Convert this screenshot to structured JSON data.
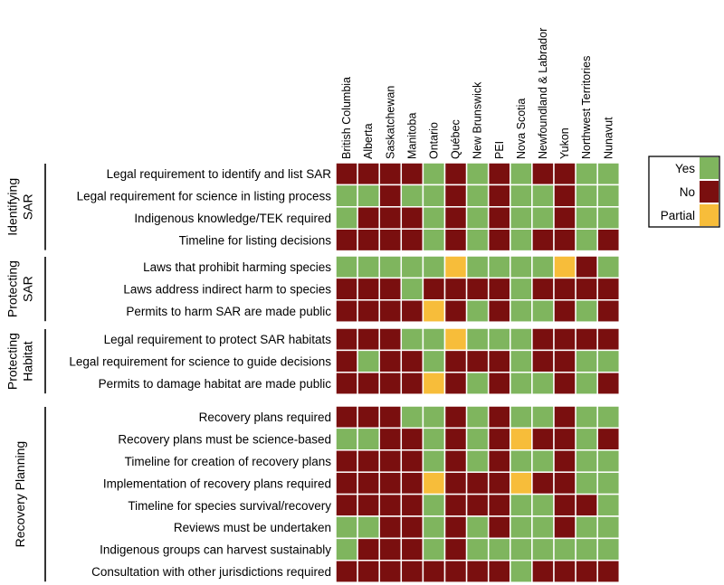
{
  "chart_data": {
    "type": "heatmap",
    "columns": [
      "British Columbia",
      "Alberta",
      "Saskatchewan",
      "Manitoba",
      "Ontario",
      "Québec",
      "New Brunswick",
      "PEI",
      "Nova Scotia",
      "Newfoundland & Labrador",
      "Yukon",
      "Northwest Territories",
      "Nunavut"
    ],
    "groups": [
      {
        "name_lines": [
          "Identifying",
          "SAR"
        ],
        "rows": [
          {
            "label": "Legal requirement to identify and list SAR",
            "values": [
              "N",
              "N",
              "N",
              "N",
              "Y",
              "N",
              "Y",
              "N",
              "Y",
              "N",
              "N",
              "Y",
              "Y"
            ]
          },
          {
            "label": "Legal requirement for science in listing process",
            "values": [
              "Y",
              "Y",
              "N",
              "Y",
              "Y",
              "N",
              "Y",
              "N",
              "Y",
              "Y",
              "N",
              "Y",
              "Y"
            ]
          },
          {
            "label": "Indigenous knowledge/TEK required",
            "values": [
              "Y",
              "N",
              "N",
              "N",
              "Y",
              "N",
              "Y",
              "N",
              "Y",
              "Y",
              "N",
              "Y",
              "Y"
            ]
          },
          {
            "label": "Timeline for listing decisions",
            "values": [
              "N",
              "N",
              "N",
              "N",
              "Y",
              "N",
              "Y",
              "N",
              "Y",
              "N",
              "N",
              "Y",
              "N"
            ]
          }
        ]
      },
      {
        "name_lines": [
          "Protecting",
          "SAR"
        ],
        "rows": [
          {
            "label": "Laws that prohibit harming species",
            "values": [
              "Y",
              "Y",
              "Y",
              "Y",
              "Y",
              "P",
              "Y",
              "Y",
              "Y",
              "Y",
              "P",
              "N",
              "Y"
            ]
          },
          {
            "label": "Laws address indirect harm to species",
            "values": [
              "N",
              "N",
              "N",
              "Y",
              "N",
              "N",
              "N",
              "N",
              "Y",
              "N",
              "N",
              "N",
              "N"
            ]
          },
          {
            "label": "Permits to harm SAR are made public",
            "values": [
              "N",
              "N",
              "N",
              "N",
              "P",
              "N",
              "Y",
              "N",
              "Y",
              "Y",
              "N",
              "Y",
              "N"
            ]
          }
        ]
      },
      {
        "name_lines": [
          "Protecting",
          "Habitat"
        ],
        "rows": [
          {
            "label": "Legal requirement to protect SAR habitats",
            "values": [
              "N",
              "N",
              "N",
              "Y",
              "Y",
              "P",
              "Y",
              "Y",
              "Y",
              "N",
              "N",
              "N",
              "N"
            ]
          },
          {
            "label": "Legal requirement for science to guide decisions",
            "values": [
              "N",
              "Y",
              "N",
              "N",
              "Y",
              "N",
              "N",
              "N",
              "Y",
              "N",
              "N",
              "Y",
              "Y"
            ]
          },
          {
            "label": "Permits to damage habitat are made public",
            "values": [
              "N",
              "N",
              "N",
              "N",
              "P",
              "N",
              "Y",
              "N",
              "Y",
              "Y",
              "N",
              "Y",
              "N"
            ]
          }
        ]
      },
      {
        "name_lines": [
          "Recovery Planning"
        ],
        "rows": [
          {
            "label": "Recovery plans required",
            "values": [
              "N",
              "N",
              "N",
              "Y",
              "Y",
              "N",
              "Y",
              "N",
              "Y",
              "Y",
              "N",
              "Y",
              "Y"
            ]
          },
          {
            "label": "Recovery plans must be science-based",
            "values": [
              "Y",
              "Y",
              "N",
              "N",
              "Y",
              "N",
              "Y",
              "N",
              "P",
              "N",
              "N",
              "Y",
              "N"
            ]
          },
          {
            "label": "Timeline for creation of recovery plans",
            "values": [
              "N",
              "N",
              "N",
              "N",
              "Y",
              "N",
              "Y",
              "N",
              "Y",
              "Y",
              "N",
              "Y",
              "Y"
            ]
          },
          {
            "label": "Implementation of recovery plans required",
            "values": [
              "N",
              "N",
              "N",
              "N",
              "P",
              "N",
              "N",
              "N",
              "P",
              "N",
              "N",
              "Y",
              "Y"
            ]
          },
          {
            "label": "Timeline for species survival/recovery",
            "values": [
              "N",
              "N",
              "N",
              "N",
              "Y",
              "N",
              "N",
              "N",
              "Y",
              "Y",
              "N",
              "N",
              "Y"
            ]
          },
          {
            "label": "Reviews must be undertaken",
            "values": [
              "Y",
              "Y",
              "N",
              "N",
              "Y",
              "N",
              "Y",
              "N",
              "Y",
              "Y",
              "N",
              "Y",
              "Y"
            ]
          },
          {
            "label": "Indigenous groups can harvest sustainably",
            "values": [
              "Y",
              "N",
              "N",
              "N",
              "Y",
              "N",
              "Y",
              "Y",
              "Y",
              "Y",
              "Y",
              "Y",
              "Y"
            ]
          },
          {
            "label": "Consultation with other jurisdictions required",
            "values": [
              "N",
              "N",
              "N",
              "N",
              "N",
              "N",
              "N",
              "N",
              "Y",
              "N",
              "N",
              "N",
              "N"
            ]
          }
        ]
      }
    ],
    "legend": {
      "placement": "right",
      "entries": [
        {
          "key": "Y",
          "label": "Yes"
        },
        {
          "key": "N",
          "label": "No"
        },
        {
          "key": "P",
          "label": "Partial"
        }
      ]
    },
    "colors": {
      "Y": "#7fb55e",
      "N": "#7a0f0f",
      "P": "#f7bd3a"
    }
  }
}
